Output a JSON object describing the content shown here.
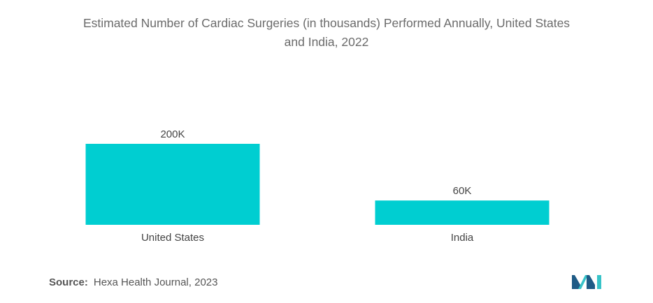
{
  "chart_data": {
    "type": "bar",
    "title_lines": [
      "Estimated Number of Cardiac Surgeries (in thousands) Performed Annually, United States",
      "and India, 2022"
    ],
    "categories": [
      "United States",
      "India"
    ],
    "values": [
      200,
      60
    ],
    "data_labels": [
      "200K",
      "60K"
    ],
    "ylim": [
      0,
      200
    ],
    "grid": false,
    "legend": "none",
    "bar_color": "#00CED1"
  },
  "source": {
    "label": "Source:",
    "text": "Hexa Health Journal, 2023"
  },
  "colors": {
    "bar": "#00CED1",
    "logo_dark": "#1f5b86",
    "logo_light": "#37c3c8"
  }
}
